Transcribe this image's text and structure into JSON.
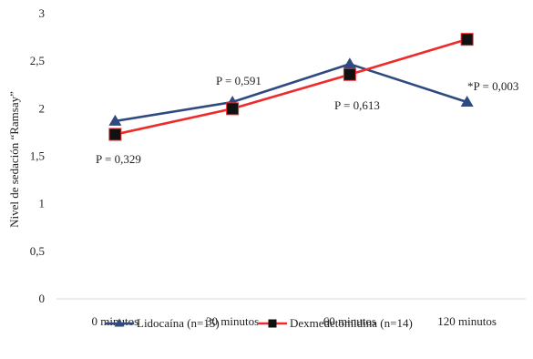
{
  "chart_data": {
    "type": "line",
    "categories": [
      "0 minutos",
      "30 minutos",
      "60 minutos",
      "120 minutos"
    ],
    "ylabel": "Nivel de sedación “Ramsay”",
    "ylim": [
      0,
      3
    ],
    "yticks": [
      0,
      0.5,
      1,
      1.5,
      2,
      2.5,
      3
    ],
    "ytick_labels": [
      "0",
      "0,5",
      "1",
      "1,5",
      "2",
      "2,5",
      "3"
    ],
    "grid": false,
    "legend_position": "bottom",
    "series": [
      {
        "name": "Lidocaína (n=15)",
        "values": [
          1.87,
          2.07,
          2.47,
          2.07
        ],
        "color": "#2f4a80",
        "marker": "triangle"
      },
      {
        "name": "Dexmedetomidina (n=14)",
        "values": [
          1.73,
          2.0,
          2.36,
          2.73
        ],
        "color": "#ee2b2b",
        "marker": "square"
      }
    ],
    "annotations": [
      {
        "text": "P = 0,329",
        "category_index": 0
      },
      {
        "text": "P = 0,591",
        "category_index": 1
      },
      {
        "text": "P = 0,613",
        "category_index": 2
      },
      {
        "text": "*P = 0,003",
        "category_index": 3
      }
    ]
  }
}
